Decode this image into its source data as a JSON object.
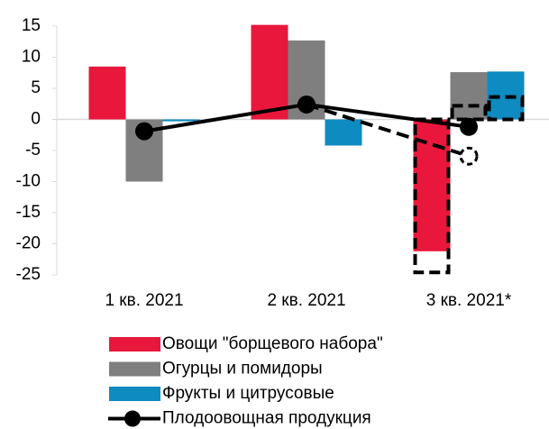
{
  "chart_data": {
    "type": "bar",
    "categories": [
      "1 кв. 2021",
      "2 кв. 2021",
      "3 кв. 2021*"
    ],
    "series": [
      {
        "name": "Овощи \"борщевого набора\"",
        "color": "#e8173b",
        "values": [
          8.5,
          15.2,
          -21.2
        ],
        "alt_values": [
          null,
          null,
          -24.6
        ]
      },
      {
        "name": "Огурцы и помидоры",
        "color": "#7f7f7f",
        "values": [
          -10,
          12.7,
          7.6
        ],
        "alt_values": [
          null,
          null,
          2.2
        ]
      },
      {
        "name": "Фрукты и цитрусовые",
        "color": "#0e8bc0",
        "values": [
          -0.3,
          -4.2,
          7.7
        ],
        "alt_values": [
          null,
          null,
          3.6
        ]
      },
      {
        "name": "Плодоовощная продукция",
        "type": "line",
        "color": "#000000",
        "values": [
          -1.9,
          2.4,
          -1.2
        ],
        "alt_values": [
          null,
          2.4,
          -5.9
        ]
      }
    ],
    "ylim": [
      -25,
      15
    ],
    "yticks": [
      -25,
      -20,
      -15,
      -10,
      -5,
      0,
      5,
      10,
      15
    ],
    "grid": false
  }
}
